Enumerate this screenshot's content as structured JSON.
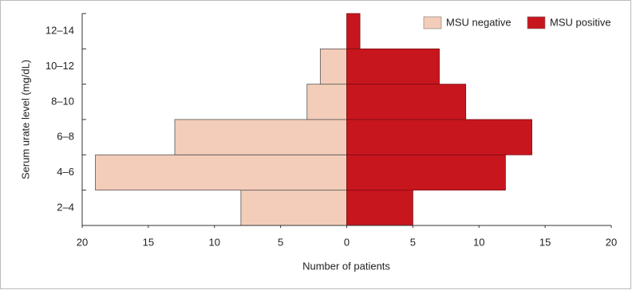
{
  "chart_data": {
    "type": "butterfly",
    "ylabel": "Serum urate level (mg/dL)",
    "xlabel": "Number of patients",
    "categories": [
      "2–4",
      "4–6",
      "6–8",
      "8–10",
      "10–12",
      "12–14"
    ],
    "series": [
      {
        "name": "MSU negative",
        "color": "#f3cdb9",
        "values": [
          8,
          19,
          13,
          3,
          2,
          0
        ]
      },
      {
        "name": "MSU positive",
        "color": "#c8161e",
        "values": [
          5,
          12,
          14,
          9,
          7,
          1
        ]
      }
    ],
    "xlim": [
      -20,
      20
    ],
    "xticks": [
      {
        "value": -20,
        "label": "20"
      },
      {
        "value": -15,
        "label": "15"
      },
      {
        "value": -10,
        "label": "10"
      },
      {
        "value": -5,
        "label": "5"
      },
      0,
      5,
      10,
      15,
      20
    ],
    "legend": "top-right"
  }
}
